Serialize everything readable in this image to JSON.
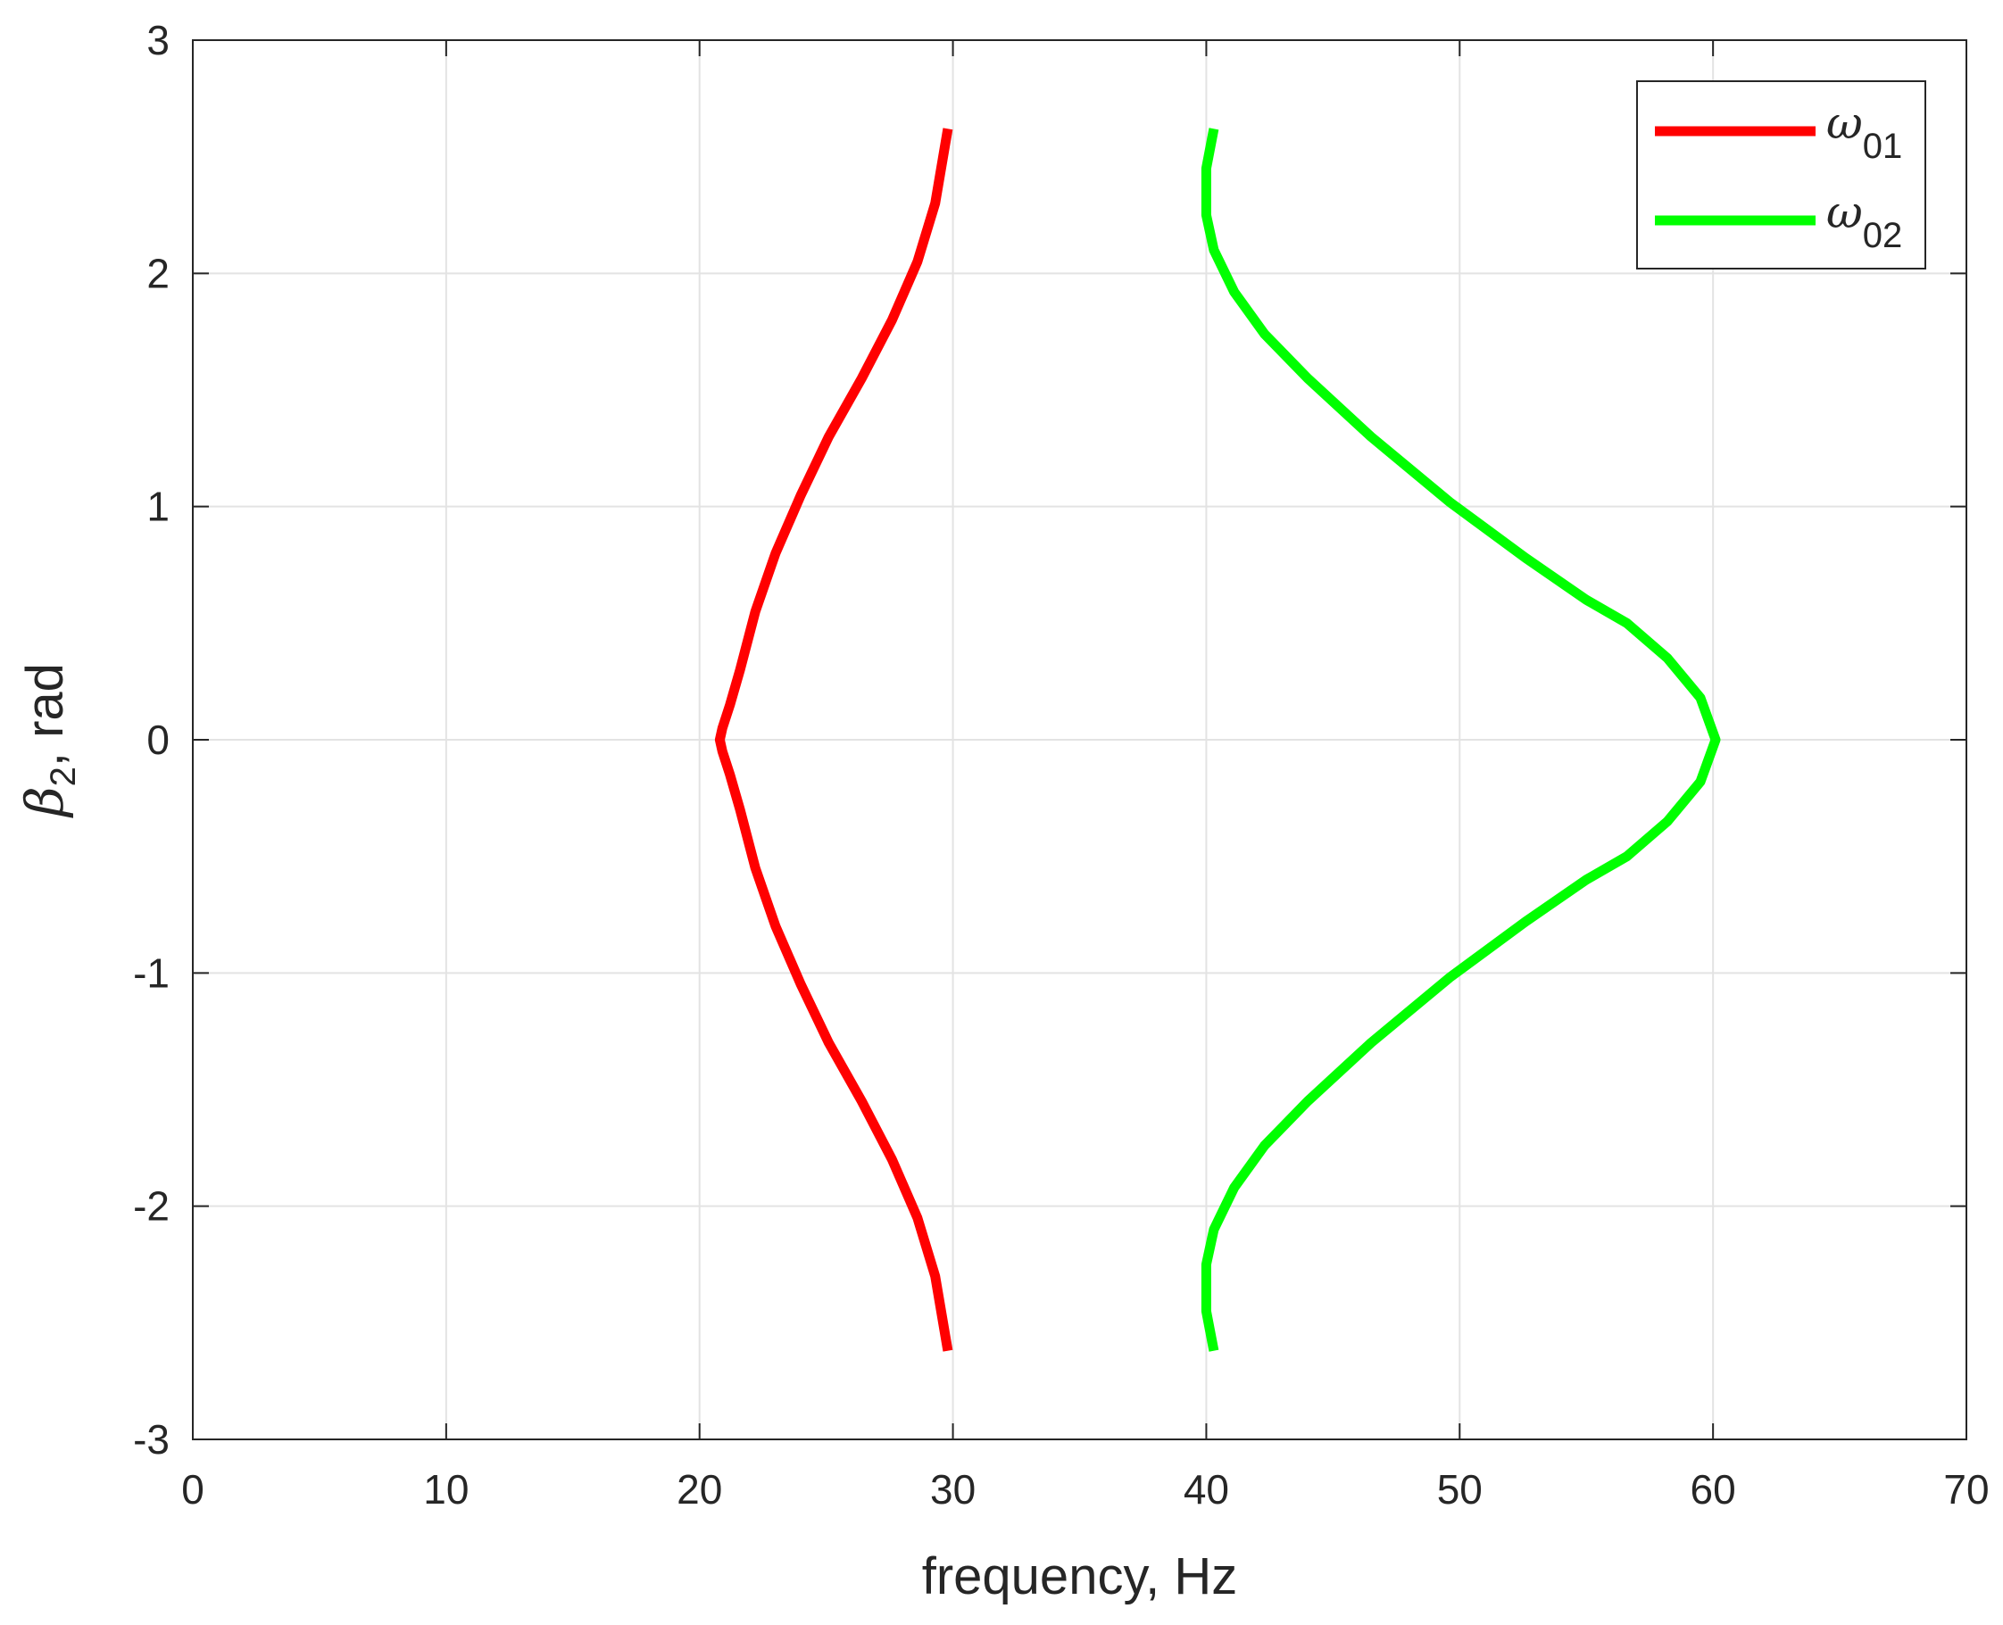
{
  "chart_data": {
    "type": "line",
    "xlabel": "frequency, Hz",
    "ylabel": {
      "symbol": "β",
      "subscript": "2",
      "suffix": ", rad"
    },
    "xlim": [
      0,
      70
    ],
    "ylim": [
      -3,
      3
    ],
    "xticks": [
      "0",
      "10",
      "20",
      "30",
      "40",
      "50",
      "60",
      "70"
    ],
    "yticks": [
      "-3",
      "-2",
      "-1",
      "0",
      "1",
      "2",
      "3"
    ],
    "grid": true,
    "legend_position": "top-right",
    "series": [
      {
        "name": "ω01",
        "legend_symbol": "ω",
        "legend_subscript": "01",
        "color": "#ff0000",
        "x": [
          29.8,
          29.3,
          28.6,
          27.6,
          26.4,
          25.1,
          24.0,
          23.0,
          22.2,
          21.6,
          21.2,
          20.9,
          20.8,
          20.9,
          21.2,
          21.6,
          22.2,
          23.0,
          24.0,
          25.1,
          26.4,
          27.6,
          28.6,
          29.3,
          29.8
        ],
        "y": [
          2.62,
          2.3,
          2.05,
          1.8,
          1.55,
          1.3,
          1.05,
          0.8,
          0.55,
          0.3,
          0.15,
          0.05,
          0.0,
          -0.05,
          -0.15,
          -0.3,
          -0.55,
          -0.8,
          -1.05,
          -1.3,
          -1.55,
          -1.8,
          -2.05,
          -2.3,
          -2.62
        ]
      },
      {
        "name": "ω02",
        "legend_symbol": "ω",
        "legend_subscript": "02",
        "color": "#00ff00",
        "x": [
          40.3,
          40.0,
          40.0,
          40.3,
          41.1,
          42.3,
          44.0,
          46.5,
          49.6,
          52.6,
          55.0,
          56.6,
          58.2,
          59.5,
          60.1,
          59.5,
          58.2,
          56.6,
          55.0,
          52.6,
          49.6,
          46.5,
          44.0,
          42.3,
          41.1,
          40.3,
          40.0,
          40.0,
          40.3
        ],
        "y": [
          2.62,
          2.45,
          2.25,
          2.1,
          1.92,
          1.74,
          1.55,
          1.3,
          1.02,
          0.78,
          0.6,
          0.5,
          0.35,
          0.18,
          0.0,
          -0.18,
          -0.35,
          -0.5,
          -0.6,
          -0.78,
          -1.02,
          -1.3,
          -1.55,
          -1.74,
          -1.92,
          -2.1,
          -2.25,
          -2.45,
          -2.62
        ]
      }
    ]
  }
}
